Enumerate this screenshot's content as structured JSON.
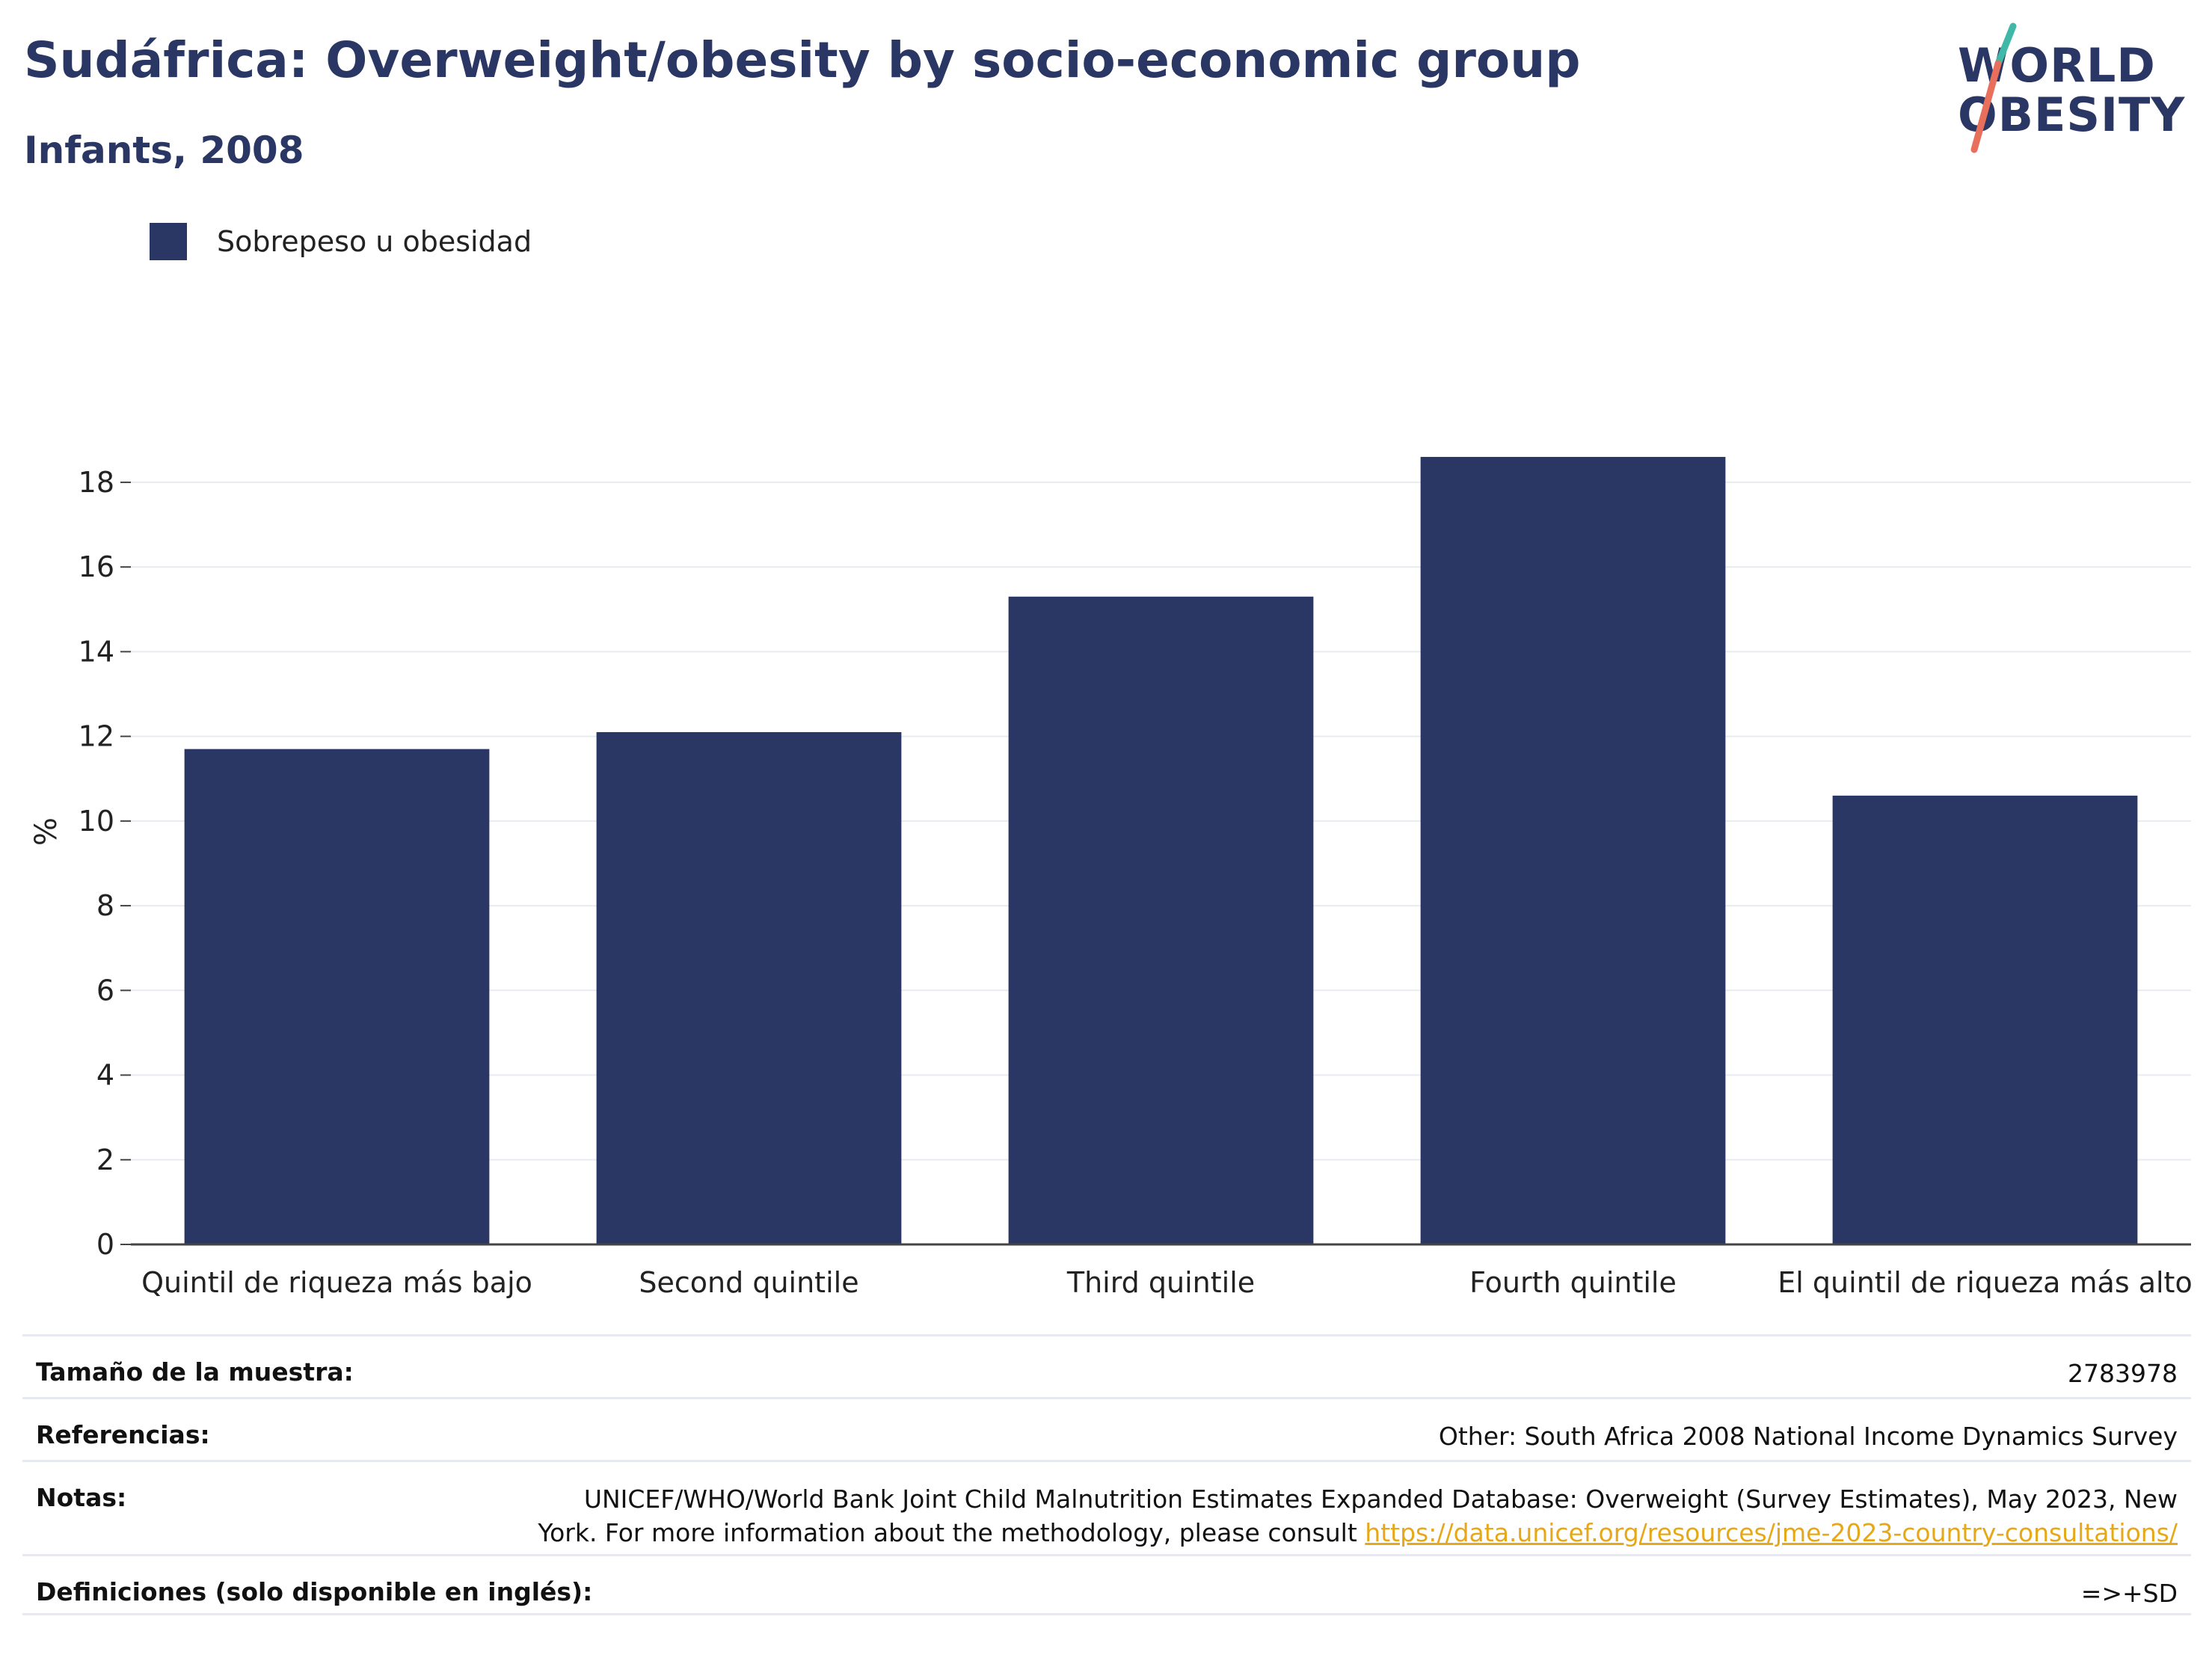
{
  "header": {
    "title": "Sudáfrica: Overweight/obesity by socio-economic group",
    "subtitle": "Infants, 2008"
  },
  "logo": {
    "line1": "WORLD",
    "line2": "OBESITY"
  },
  "chart_data": {
    "type": "bar",
    "categories": [
      "Quintil de riqueza más bajo",
      "Second quintile",
      "Third quintile",
      "Fourth quintile",
      "El quintil de riqueza más alto"
    ],
    "series": [
      {
        "name": "Sobrepeso u obesidad",
        "values": [
          11.7,
          12.1,
          15.3,
          18.6,
          10.6
        ],
        "color": "#2a3663"
      }
    ],
    "ylabel": "%",
    "ylim": [
      0,
      19.5
    ],
    "yticks": [
      0,
      2,
      4,
      6,
      8,
      10,
      12,
      14,
      16,
      18
    ],
    "grid": true,
    "legend_position": "top-left"
  },
  "footer": {
    "sample_label": "Tamaño de la muestra:",
    "sample_value": "2783978",
    "refs_label": "Referencias:",
    "refs_value": "Other: South Africa 2008 National Income Dynamics Survey",
    "notes_label": "Notas:",
    "notes_line1": "UNICEF/WHO/World Bank Joint Child Malnutrition Estimates Expanded Database: Overweight (Survey Estimates), May 2023, New",
    "notes_line2": "York. For more information about the methodology, please consult",
    "notes_link": "https://data.unicef.org/resources/jme-2023-country-consultations/",
    "defs_label": "Definiciones (solo disponible en inglés):",
    "defs_value": "=>+SD"
  }
}
